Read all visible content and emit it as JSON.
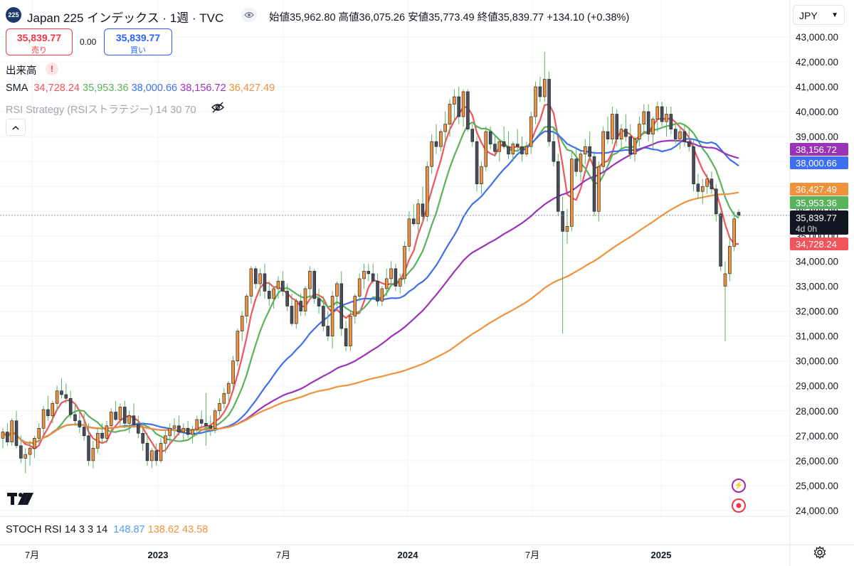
{
  "header": {
    "symbol_badge": "225",
    "title": "Japan 225 インデックス · 1週 · TVC",
    "ohlc": {
      "open_label": "始値",
      "open": "35,962.80",
      "high_label": "高値",
      "high": "36,075.26",
      "low_label": "安値",
      "low": "35,773.49",
      "close_label": "終値",
      "close": "35,839.77",
      "change": "+134.10 (+0.38%)"
    },
    "currency": "JPY"
  },
  "trade": {
    "sell_price": "35,839.77",
    "sell_label": "売り",
    "spread": "0.00",
    "buy_price": "35,839.77",
    "buy_label": "買い"
  },
  "indicators": {
    "volume_label": "出来高",
    "sma_label": "SMA",
    "sma_values": [
      "34,728.24",
      "35,953.36",
      "38,000.66",
      "38,156.72",
      "36,427.49"
    ],
    "rsi_label": "RSI Strategy (RSIストラテジー) 14 30 70",
    "stoch_label": "STOCH RSI 14 3 3 14",
    "stoch_values": [
      "148.87",
      "138.62",
      "43.58"
    ]
  },
  "colors": {
    "up": "#f0923a",
    "down": "#4a4e59",
    "sma1": "#f2545b",
    "sma2": "#5ab25d",
    "sma3": "#3d6ff0",
    "sma4": "#9a33b8",
    "sma5": "#f0923a",
    "stoch1": "#4f9ef5",
    "stoch2": "#f0923a",
    "stoch3": "#f0923a"
  },
  "icons": [
    "eye-icon",
    "chevron-down-icon",
    "warning-icon",
    "chevron-up-icon",
    "eye-off-icon",
    "lightning-icon",
    "record-icon",
    "gear-icon",
    "tradingview-logo"
  ],
  "chart_data": {
    "type": "candlestick",
    "title": "Japan 225 インデックス · 1週 · TVC",
    "ylim": [
      24000,
      43000
    ],
    "y_ticks": [
      "43,000.00",
      "42,000.00",
      "41,000.00",
      "40,000.00",
      "39,000.00",
      "38,000.00",
      "37,000.00",
      "36,000.00",
      "35,000.00",
      "34,000.00",
      "33,000.00",
      "32,000.00",
      "31,000.00",
      "30,000.00",
      "29,000.00",
      "28,000.00",
      "27,000.00",
      "26,000.00",
      "25,000.00",
      "24,000.00"
    ],
    "x_ticks": [
      "7月",
      "2023",
      "7月",
      "2024",
      "7月",
      "2025"
    ],
    "last_price_label": "35,839.77",
    "countdown": "4d 0h",
    "series_tags": [
      {
        "value": 38156.72,
        "label": "38,156.72",
        "color": "#9a33b8"
      },
      {
        "value": 38000.66,
        "label": "38,000.66",
        "color": "#3d6ff0"
      },
      {
        "value": 36427.49,
        "label": "36,427.49",
        "color": "#f0923a"
      },
      {
        "value": 35953.36,
        "label": "35,953.36",
        "color": "#5ab25d"
      },
      {
        "value": 34728.24,
        "label": "34,728.24",
        "color": "#f2545b"
      }
    ],
    "candles": [
      [
        26900,
        27300,
        26500,
        27150
      ],
      [
        27150,
        27500,
        26600,
        26750
      ],
      [
        26750,
        27700,
        26600,
        27600
      ],
      [
        27600,
        28000,
        26500,
        26600
      ],
      [
        26600,
        27000,
        25900,
        26100
      ],
      [
        26100,
        26500,
        25500,
        26250
      ],
      [
        26250,
        26800,
        25800,
        26500
      ],
      [
        26500,
        27000,
        26100,
        26900
      ],
      [
        26900,
        27500,
        26700,
        27300
      ],
      [
        27300,
        28200,
        27000,
        28050
      ],
      [
        28050,
        28600,
        27600,
        27800
      ],
      [
        27800,
        28400,
        27500,
        28300
      ],
      [
        28300,
        29000,
        28000,
        28800
      ],
      [
        28800,
        29300,
        28500,
        28650
      ],
      [
        28650,
        29100,
        28300,
        28500
      ],
      [
        28500,
        28800,
        27700,
        27850
      ],
      [
        27850,
        28300,
        27400,
        27600
      ],
      [
        27600,
        28000,
        27100,
        27350
      ],
      [
        27350,
        27900,
        26800,
        27000
      ],
      [
        27000,
        27500,
        25800,
        26000
      ],
      [
        26000,
        26800,
        25700,
        26500
      ],
      [
        26500,
        27300,
        26300,
        27100
      ],
      [
        27100,
        27500,
        26700,
        26900
      ],
      [
        26900,
        27600,
        26700,
        27400
      ],
      [
        27400,
        28100,
        27200,
        27950
      ],
      [
        27950,
        28400,
        27600,
        27650
      ],
      [
        27650,
        28300,
        27400,
        28150
      ],
      [
        28150,
        28400,
        27300,
        27500
      ],
      [
        27500,
        28000,
        27100,
        27800
      ],
      [
        27800,
        28300,
        27300,
        27450
      ],
      [
        27450,
        27800,
        26900,
        27100
      ],
      [
        27100,
        27500,
        26400,
        26700
      ],
      [
        26700,
        27100,
        25800,
        26000
      ],
      [
        26000,
        26500,
        25700,
        26400
      ],
      [
        26400,
        26700,
        25800,
        26000
      ],
      [
        26000,
        26900,
        25900,
        26700
      ],
      [
        26700,
        27200,
        26300,
        27000
      ],
      [
        27000,
        27500,
        26700,
        27300
      ],
      [
        27300,
        27700,
        26900,
        27400
      ],
      [
        27400,
        27800,
        27000,
        27150
      ],
      [
        27150,
        27500,
        26800,
        27300
      ],
      [
        27300,
        27600,
        26900,
        27050
      ],
      [
        27050,
        27400,
        26700,
        27250
      ],
      [
        27250,
        27800,
        27000,
        27650
      ],
      [
        27650,
        28000,
        27300,
        27500
      ],
      [
        27500,
        28700,
        26600,
        27400
      ],
      [
        27400,
        27800,
        27000,
        27300
      ],
      [
        27300,
        28100,
        27100,
        28000
      ],
      [
        28000,
        28500,
        27800,
        28300
      ],
      [
        28300,
        28900,
        28100,
        28700
      ],
      [
        28700,
        29200,
        28400,
        29100
      ],
      [
        29100,
        30200,
        28900,
        30000
      ],
      [
        30000,
        31300,
        29800,
        31200
      ],
      [
        31200,
        32000,
        30800,
        31800
      ],
      [
        31800,
        32700,
        31500,
        32600
      ],
      [
        32600,
        33800,
        32300,
        33700
      ],
      [
        33700,
        33800,
        32900,
        33100
      ],
      [
        33100,
        33700,
        32600,
        33500
      ],
      [
        33500,
        33900,
        32500,
        32800
      ],
      [
        32800,
        33200,
        32200,
        32500
      ],
      [
        32500,
        33000,
        32100,
        32900
      ],
      [
        32900,
        33400,
        32500,
        33200
      ],
      [
        33200,
        33600,
        32600,
        32800
      ],
      [
        32800,
        33100,
        32000,
        32200
      ],
      [
        32200,
        32700,
        31400,
        31500
      ],
      [
        31500,
        32500,
        31300,
        32400
      ],
      [
        32400,
        32700,
        31800,
        32000
      ],
      [
        32000,
        33000,
        31800,
        32900
      ],
      [
        32900,
        33800,
        32500,
        33600
      ],
      [
        33600,
        33700,
        32300,
        32500
      ],
      [
        32500,
        32900,
        31900,
        32200
      ],
      [
        32200,
        32600,
        31200,
        31400
      ],
      [
        31400,
        32000,
        30800,
        31000
      ],
      [
        31000,
        32800,
        30500,
        32600
      ],
      [
        32600,
        33200,
        32200,
        33100
      ],
      [
        33100,
        33600,
        31000,
        31300
      ],
      [
        31300,
        31600,
        30400,
        30600
      ],
      [
        30600,
        32000,
        30400,
        31800
      ],
      [
        31800,
        32700,
        31500,
        32600
      ],
      [
        32600,
        33500,
        32400,
        33300
      ],
      [
        33300,
        33900,
        32900,
        33600
      ],
      [
        33600,
        33900,
        33200,
        33500
      ],
      [
        33500,
        33900,
        33100,
        33200
      ],
      [
        33200,
        33500,
        32200,
        32400
      ],
      [
        32400,
        33000,
        32200,
        32900
      ],
      [
        32900,
        33700,
        32600,
        33300
      ],
      [
        33300,
        34000,
        33000,
        33700
      ],
      [
        33700,
        33900,
        32800,
        33000
      ],
      [
        33000,
        33500,
        32700,
        33300
      ],
      [
        33300,
        34800,
        33100,
        34600
      ],
      [
        34600,
        36000,
        34400,
        35700
      ],
      [
        35700,
        36300,
        35400,
        35500
      ],
      [
        35500,
        36500,
        35200,
        36300
      ],
      [
        36300,
        37000,
        35500,
        35800
      ],
      [
        35800,
        38000,
        35600,
        37800
      ],
      [
        37800,
        39100,
        37500,
        38800
      ],
      [
        38800,
        39500,
        38300,
        38600
      ],
      [
        38600,
        39300,
        38400,
        39200
      ],
      [
        39200,
        40000,
        38700,
        39500
      ],
      [
        39500,
        40500,
        39000,
        40300
      ],
      [
        40300,
        40900,
        39600,
        40600
      ],
      [
        40600,
        41000,
        39500,
        39800
      ],
      [
        39800,
        40900,
        39400,
        40800
      ],
      [
        40800,
        40900,
        39200,
        39300
      ],
      [
        39300,
        39500,
        38600,
        38800
      ],
      [
        38800,
        39000,
        36800,
        37100
      ],
      [
        37100,
        38000,
        36700,
        37800
      ],
      [
        37800,
        39400,
        37600,
        39200
      ],
      [
        39200,
        39400,
        38500,
        38700
      ],
      [
        38700,
        39000,
        38200,
        38400
      ],
      [
        38400,
        38900,
        38000,
        38800
      ],
      [
        38800,
        39400,
        38500,
        38600
      ],
      [
        38600,
        39200,
        38100,
        38300
      ],
      [
        38300,
        38800,
        38000,
        38700
      ],
      [
        38700,
        39300,
        38400,
        38600
      ],
      [
        38600,
        39000,
        38000,
        38300
      ],
      [
        38300,
        38800,
        38200,
        38600
      ],
      [
        38600,
        40000,
        38300,
        39800
      ],
      [
        39800,
        41200,
        39500,
        41000
      ],
      [
        41000,
        41400,
        40400,
        40600
      ],
      [
        40600,
        42400,
        40400,
        41300
      ],
      [
        41300,
        41600,
        38600,
        38800
      ],
      [
        38800,
        39400,
        37800,
        38000
      ],
      [
        38000,
        38300,
        35800,
        36000
      ],
      [
        36000,
        36600,
        31100,
        35200
      ],
      [
        35200,
        36100,
        34700,
        35400
      ],
      [
        35400,
        38400,
        35200,
        38100
      ],
      [
        38100,
        38600,
        37400,
        37600
      ],
      [
        37600,
        38400,
        37200,
        38300
      ],
      [
        38300,
        38900,
        37900,
        38600
      ],
      [
        38600,
        39200,
        38000,
        38200
      ],
      [
        38200,
        38400,
        35800,
        36000
      ],
      [
        36000,
        38000,
        35600,
        37800
      ],
      [
        37800,
        39400,
        37600,
        39200
      ],
      [
        39200,
        39800,
        38700,
        38900
      ],
      [
        38900,
        40200,
        38700,
        39900
      ],
      [
        39900,
        40100,
        38600,
        38900
      ],
      [
        38900,
        39500,
        38400,
        39300
      ],
      [
        39300,
        39900,
        38800,
        39000
      ],
      [
        39000,
        39500,
        38100,
        38300
      ],
      [
        38300,
        39000,
        38000,
        38900
      ],
      [
        38900,
        39800,
        38600,
        39500
      ],
      [
        39500,
        40300,
        39200,
        40000
      ],
      [
        40000,
        40300,
        38800,
        39100
      ],
      [
        39100,
        39800,
        38500,
        39700
      ],
      [
        39700,
        40400,
        39200,
        40200
      ],
      [
        40200,
        40400,
        39400,
        39600
      ],
      [
        39600,
        40200,
        39000,
        39900
      ],
      [
        39900,
        40200,
        39100,
        39300
      ],
      [
        39300,
        39500,
        38700,
        38900
      ],
      [
        38900,
        39400,
        38500,
        39200
      ],
      [
        39200,
        39500,
        38600,
        38800
      ],
      [
        38800,
        39300,
        38400,
        38600
      ],
      [
        38600,
        38900,
        36800,
        37100
      ],
      [
        37100,
        37500,
        36500,
        36800
      ],
      [
        36800,
        37300,
        36300,
        37000
      ],
      [
        37000,
        37500,
        36700,
        37300
      ],
      [
        37300,
        37600,
        36700,
        36900
      ],
      [
        36900,
        37100,
        35600,
        35900
      ],
      [
        35900,
        36000,
        33600,
        33800
      ],
      [
        33000,
        34000,
        30800,
        33500
      ],
      [
        33500,
        35000,
        33200,
        34600
      ],
      [
        34600,
        36000,
        34400,
        35700
      ],
      [
        35963,
        36075,
        35773,
        35840
      ]
    ]
  }
}
